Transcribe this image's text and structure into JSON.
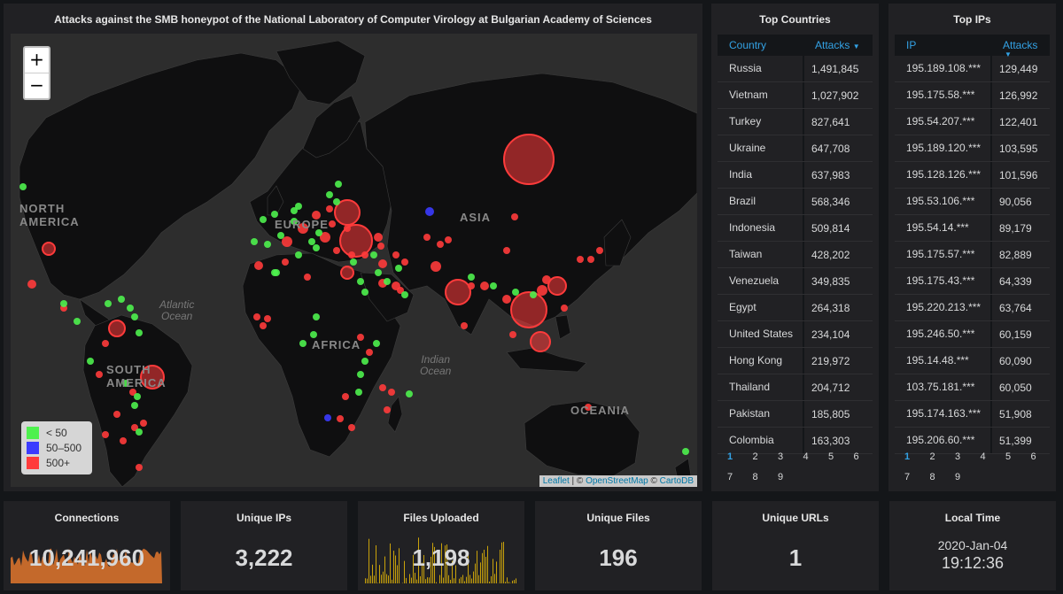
{
  "map": {
    "title": "Attacks against the SMB honeypot of the National Laboratory of Computer Virology at Bulgarian Academy of Sciences",
    "zoom_in": "+",
    "zoom_out": "−",
    "legend": [
      {
        "label": "< 50",
        "color": "#4ef14e"
      },
      {
        "label": "50–500",
        "color": "#3b3bff"
      },
      {
        "label": "500+",
        "color": "#ff3b3b"
      }
    ],
    "attribution": {
      "leaflet": "Leaflet",
      "sep1": " | © ",
      "osm": "OpenStreetMap",
      "sep2": " © ",
      "carto": "CartoDB"
    },
    "labels": {
      "north_america": "NORTH\nAMERICA",
      "south_america": "SOUTH\nAMERICA",
      "europe": "EUROPE",
      "africa": "AFRICA",
      "asia": "ASIA",
      "oceania": "OCEANIA",
      "atlantic": "Atlantic\nOcean",
      "indian": "Indian\nOcean"
    }
  },
  "top_countries": {
    "title": "Top Countries",
    "col1": "Country",
    "col2": "Attacks",
    "rows": [
      [
        "Russia",
        "1,491,845"
      ],
      [
        "Vietnam",
        "1,027,902"
      ],
      [
        "Turkey",
        "827,641"
      ],
      [
        "Ukraine",
        "647,708"
      ],
      [
        "India",
        "637,983"
      ],
      [
        "Brazil",
        "568,346"
      ],
      [
        "Indonesia",
        "509,814"
      ],
      [
        "Taiwan",
        "428,202"
      ],
      [
        "Venezuela",
        "349,835"
      ],
      [
        "Egypt",
        "264,318"
      ],
      [
        "United States",
        "234,104"
      ],
      [
        "Hong Kong",
        "219,972"
      ],
      [
        "Thailand",
        "204,712"
      ],
      [
        "Pakistan",
        "185,805"
      ],
      [
        "Colombia",
        "163,303"
      ]
    ],
    "pages": [
      "1",
      "2",
      "3",
      "4",
      "5",
      "6",
      "7",
      "8",
      "9"
    ]
  },
  "top_ips": {
    "title": "Top IPs",
    "col1": "IP",
    "col2": "Attacks",
    "rows": [
      [
        "195.189.108.***",
        "129,449"
      ],
      [
        "195.175.58.***",
        "126,992"
      ],
      [
        "195.54.207.***",
        "122,401"
      ],
      [
        "195.189.120.***",
        "103,595"
      ],
      [
        "195.128.126.***",
        "101,596"
      ],
      [
        "195.53.106.***",
        "90,056"
      ],
      [
        "195.54.14.***",
        "89,179"
      ],
      [
        "195.175.57.***",
        "82,889"
      ],
      [
        "195.175.43.***",
        "64,339"
      ],
      [
        "195.220.213.***",
        "63,764"
      ],
      [
        "195.246.50.***",
        "60,159"
      ],
      [
        "195.14.48.***",
        "60,090"
      ],
      [
        "103.75.181.***",
        "60,050"
      ],
      [
        "195.174.163.***",
        "51,908"
      ],
      [
        "195.206.60.***",
        "51,399"
      ]
    ],
    "pages": [
      "1",
      "2",
      "3",
      "4",
      "5",
      "6",
      "7",
      "8",
      "9"
    ]
  },
  "stats": {
    "connections": {
      "title": "Connections",
      "value": "10,241,960",
      "spark_color": "#e0752d"
    },
    "unique_ips": {
      "title": "Unique IPs",
      "value": "3,222"
    },
    "files_uploaded": {
      "title": "Files Uploaded",
      "value": "1,198",
      "spark_color": "#c9a20b"
    },
    "unique_files": {
      "title": "Unique Files",
      "value": "196"
    },
    "unique_urls": {
      "title": "Unique URLs",
      "value": "1"
    },
    "local_time": {
      "title": "Local Time",
      "date": "2020-Jan-04",
      "time": "19:12:36"
    }
  }
}
